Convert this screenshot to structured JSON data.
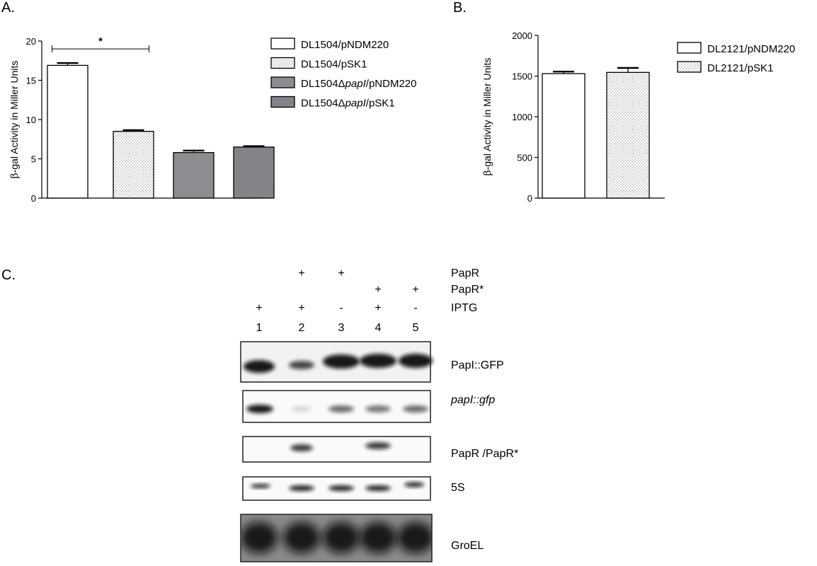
{
  "panels": {
    "a": "A.",
    "b": "B.",
    "c": "C."
  },
  "chart_data": [
    {
      "type": "bar",
      "panel": "A.",
      "ylabel_prefix": "β",
      "ylabel": "-gal Activity in Miller Units",
      "ylim": [
        0,
        20
      ],
      "yticks": [
        0,
        5,
        10,
        15,
        20
      ],
      "series": [
        {
          "name": "DL1504/pNDM220",
          "name_parts": [
            "DL1504/pNDM220"
          ],
          "value": 16.9,
          "error": 0.3,
          "fill": "#ffffff",
          "pattern": "none"
        },
        {
          "name": "DL1504/pSK1",
          "name_parts": [
            "DL1504/pSK1"
          ],
          "value": 8.5,
          "error": 0.15,
          "fill": "#ffffff",
          "pattern": "dots"
        },
        {
          "name": "DL1504ΔpapI/pNDM220",
          "name_parts": [
            "DL1504Δ",
            "papI",
            "/pNDM220"
          ],
          "value": 5.8,
          "error": 0.25,
          "fill": "#8c8c92",
          "pattern": "none"
        },
        {
          "name": "DL1504ΔpapI/pSK1",
          "name_parts": [
            "DL1504Δ",
            "papI",
            "/pSK1"
          ],
          "value": 6.5,
          "error": 0.12,
          "fill": "#8c8c92",
          "pattern": "dots"
        }
      ],
      "significance": {
        "label": "*",
        "from": 0,
        "to": 1,
        "y": 19
      },
      "legend_position": "right"
    },
    {
      "type": "bar",
      "panel": "B.",
      "ylabel_prefix": "β",
      "ylabel": "-gal Activity in Miller Units",
      "ylim": [
        0,
        2000
      ],
      "yticks": [
        0,
        500,
        1000,
        1500,
        2000
      ],
      "series": [
        {
          "name": "DL2121/pNDM220",
          "name_parts": [
            "DL2121/pNDM220"
          ],
          "value": 1530,
          "error": 25,
          "fill": "#ffffff",
          "pattern": "none"
        },
        {
          "name": "DL2121/pSK1",
          "name_parts": [
            "DL2121/pSK1"
          ],
          "value": 1545,
          "error": 55,
          "fill": "#ffffff",
          "pattern": "dots"
        }
      ],
      "legend_position": "right"
    }
  ],
  "blot": {
    "conditions": [
      {
        "label": "PapR",
        "marks": [
          "",
          "+",
          "+",
          "",
          ""
        ]
      },
      {
        "label": "PapR*",
        "marks": [
          "",
          "",
          "",
          "+",
          "+"
        ]
      },
      {
        "label": "IPTG",
        "marks": [
          "+",
          "+",
          "-",
          "+",
          "-"
        ]
      }
    ],
    "lanes": [
      "1",
      "2",
      "3",
      "4",
      "5"
    ],
    "rows": [
      {
        "label": "PapI::GFP",
        "italic": false
      },
      {
        "label": "papI::gfp",
        "italic": true
      },
      {
        "label": "PapR /PapR*",
        "italic": false
      },
      {
        "label": "5S",
        "italic": false
      },
      {
        "label": "GroEL",
        "italic": false
      }
    ]
  }
}
